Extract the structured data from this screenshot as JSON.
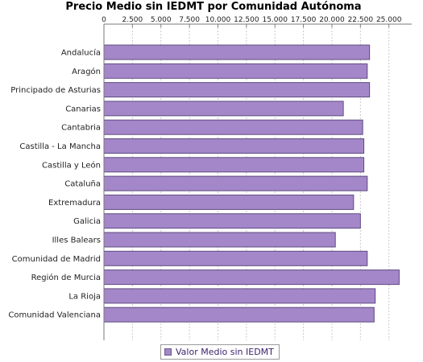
{
  "colors": {
    "bar": "#a487c9",
    "bar_stroke": "#5e4b7f",
    "grid": "#c8c8c8",
    "axis": "#7a7a7a"
  },
  "chart_data": {
    "type": "bar",
    "orientation": "horizontal",
    "title": "Precio Medio sin IEDMT por Comunidad Autónoma",
    "categories": [
      "Andalucía",
      "Aragón",
      "Principado de Asturias",
      "Canarias",
      "Cantabria",
      "Castilla - La Mancha",
      "Castilla y León",
      "Cataluña",
      "Extremadura",
      "Galicia",
      "Illes Balears",
      "Comunidad de Madrid",
      "Región de Murcia",
      "La Rioja",
      "Comunidad Valenciana"
    ],
    "series": [
      {
        "name": "Valor Medio sin IEDMT",
        "values": [
          23300,
          23100,
          23300,
          21000,
          22700,
          22800,
          22800,
          23100,
          21900,
          22500,
          20300,
          23100,
          25900,
          23800,
          23700
        ]
      }
    ],
    "xlim": [
      0,
      27000
    ],
    "ticks": [
      0,
      2500,
      5000,
      7500,
      10000,
      12500,
      15000,
      17500,
      20000,
      22500,
      25000
    ],
    "tick_labels": [
      "0",
      "2.500",
      "5.000",
      "7.500",
      "10.000",
      "12.500",
      "15.000",
      "17.500",
      "20.000",
      "22.500",
      "25.000"
    ],
    "grid": true,
    "grid_style": "dashed-vertical",
    "axis_position": "top",
    "legend_position": "bottom"
  }
}
